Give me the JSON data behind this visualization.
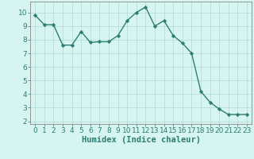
{
  "x": [
    0,
    1,
    2,
    3,
    4,
    5,
    6,
    7,
    8,
    9,
    10,
    11,
    12,
    13,
    14,
    15,
    16,
    17,
    18,
    19,
    20,
    21,
    22,
    23
  ],
  "y": [
    9.8,
    9.1,
    9.1,
    7.6,
    7.6,
    8.6,
    7.8,
    7.85,
    7.85,
    8.3,
    9.4,
    10.0,
    10.4,
    9.0,
    9.4,
    8.3,
    7.75,
    7.0,
    4.2,
    3.4,
    2.9,
    2.5,
    2.5,
    2.5
  ],
  "line_color": "#2e7d72",
  "marker": "D",
  "markersize": 2.2,
  "linewidth": 1.0,
  "xlabel": "Humidex (Indice chaleur)",
  "bg_color": "#d6f5f0",
  "grid_color": "#b8dcd8",
  "xlim": [
    -0.5,
    23.5
  ],
  "ylim": [
    1.8,
    10.8
  ],
  "yticks": [
    2,
    3,
    4,
    5,
    6,
    7,
    8,
    9,
    10
  ],
  "xticks": [
    0,
    1,
    2,
    3,
    4,
    5,
    6,
    7,
    8,
    9,
    10,
    11,
    12,
    13,
    14,
    15,
    16,
    17,
    18,
    19,
    20,
    21,
    22,
    23
  ],
  "xlabel_fontsize": 7.5,
  "tick_fontsize": 6.5
}
